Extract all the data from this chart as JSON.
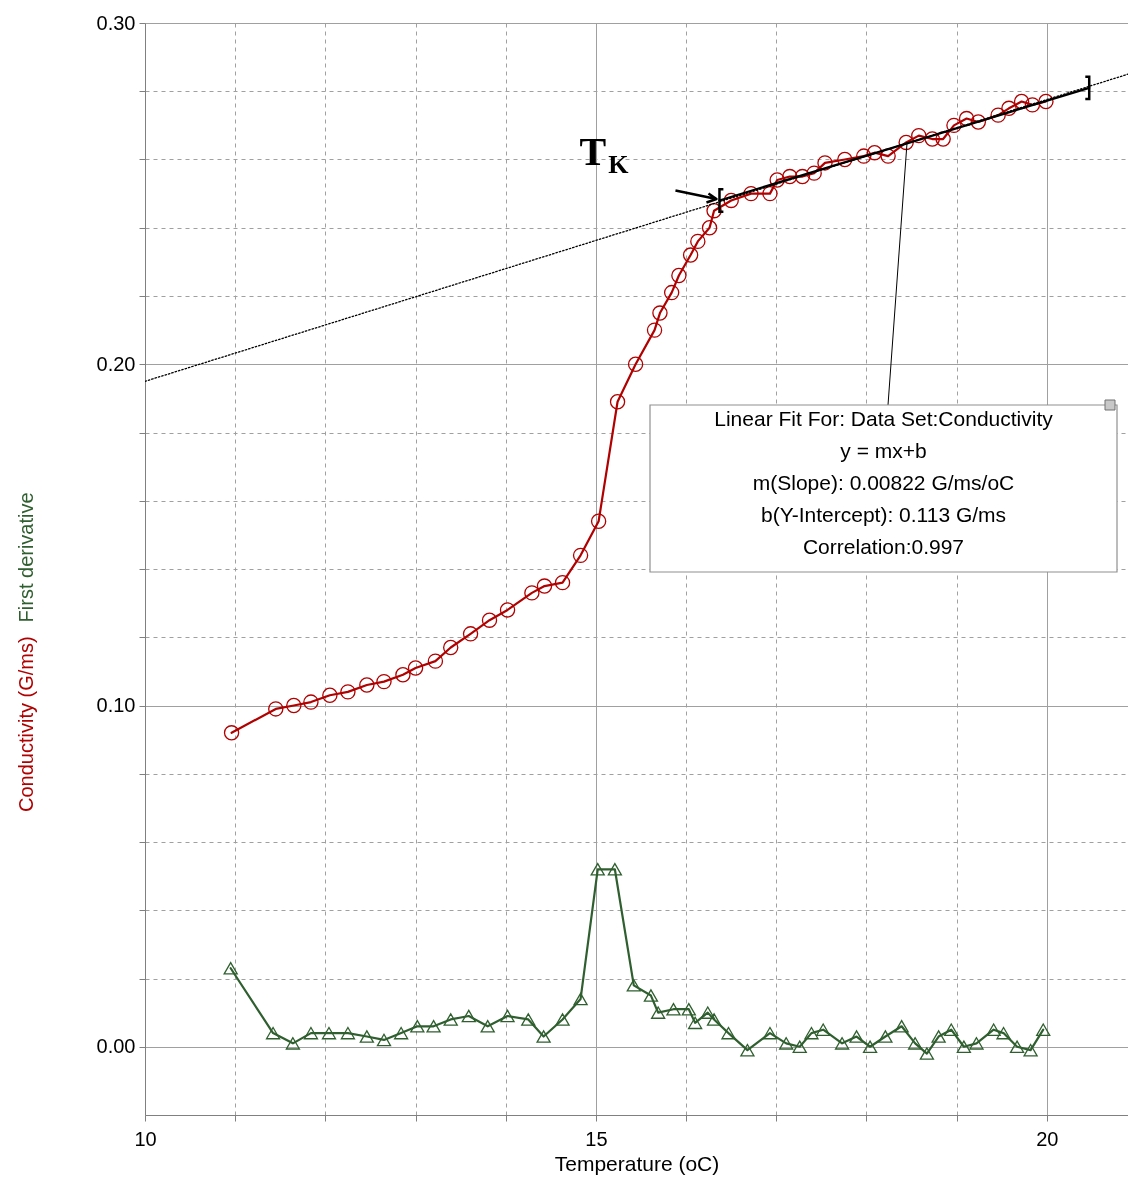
{
  "chart_data": {
    "type": "line",
    "xlabel": "Temperature (oC)",
    "xlim": [
      10,
      20.9
    ],
    "ylim": [
      -0.02,
      0.3
    ],
    "xticks": [
      10,
      {
        "value": 11,
        "label": null
      },
      {
        "value": 12,
        "label": null
      },
      {
        "value": 13,
        "label": null
      },
      {
        "value": 14,
        "label": null
      },
      15,
      {
        "value": 16,
        "label": null
      },
      {
        "value": 17,
        "label": null
      },
      {
        "value": 18,
        "label": null
      },
      {
        "value": 19,
        "label": null
      },
      20
    ],
    "yticks": [
      {
        "value": 0,
        "label": "0.00"
      },
      {
        "value": 0.02,
        "label": null
      },
      {
        "value": 0.04,
        "label": null
      },
      {
        "value": 0.06,
        "label": null
      },
      {
        "value": 0.08,
        "label": null
      },
      {
        "value": 0.1,
        "label": "0.10"
      },
      {
        "value": 0.12,
        "label": null
      },
      {
        "value": 0.14,
        "label": null
      },
      {
        "value": 0.16,
        "label": null
      },
      {
        "value": 0.18,
        "label": null
      },
      {
        "value": 0.2,
        "label": "0.20"
      },
      {
        "value": 0.22,
        "label": null
      },
      {
        "value": 0.24,
        "label": null
      },
      {
        "value": 0.26,
        "label": null
      },
      {
        "value": 0.28,
        "label": null
      },
      {
        "value": 0.3,
        "label": "0.30"
      }
    ],
    "grid": true,
    "series": [
      {
        "name": "Conductivity (G/ms)",
        "color": "#b00000",
        "marker": "circle",
        "x": [
          10.96,
          11.45,
          11.65,
          11.84,
          12.05,
          12.25,
          12.46,
          12.65,
          12.86,
          13.0,
          13.22,
          13.39,
          13.61,
          13.82,
          14.02,
          14.29,
          14.43,
          14.63,
          14.83,
          15.03,
          15.24,
          15.44,
          15.65,
          15.71,
          15.84,
          15.92,
          16.05,
          16.13,
          16.26,
          16.31,
          16.5,
          16.72,
          16.93,
          17.01,
          17.15,
          17.29,
          17.42,
          17.54,
          17.76,
          17.97,
          18.09,
          18.24,
          18.44,
          18.58,
          18.73,
          18.85,
          18.97,
          19.11,
          19.24,
          19.46,
          19.58,
          19.72,
          19.84,
          19.99
        ],
        "values": [
          0.092,
          0.099,
          0.1,
          0.101,
          0.103,
          0.104,
          0.106,
          0.107,
          0.109,
          0.111,
          0.113,
          0.117,
          0.121,
          0.125,
          0.128,
          0.133,
          0.135,
          0.136,
          0.144,
          0.154,
          0.189,
          0.2,
          0.21,
          0.215,
          0.221,
          0.226,
          0.232,
          0.236,
          0.24,
          0.245,
          0.248,
          0.25,
          0.25,
          0.254,
          0.255,
          0.255,
          0.256,
          0.259,
          0.26,
          0.261,
          0.262,
          0.261,
          0.265,
          0.267,
          0.266,
          0.266,
          0.27,
          0.272,
          0.271,
          0.273,
          0.275,
          0.277,
          0.276,
          0.277
        ]
      },
      {
        "name": "First derivative",
        "color": "#2f5f2f",
        "marker": "triangle",
        "x": [
          10.95,
          11.42,
          11.64,
          11.84,
          12.04,
          12.25,
          12.46,
          12.65,
          12.84,
          13.02,
          13.2,
          13.39,
          13.59,
          13.8,
          14.02,
          14.25,
          14.42,
          14.63,
          14.83,
          15.02,
          15.21,
          15.42,
          15.61,
          15.69,
          15.86,
          16.03,
          16.1,
          16.24,
          16.31,
          16.47,
          16.68,
          16.93,
          17.11,
          17.26,
          17.39,
          17.52,
          17.73,
          17.89,
          18.04,
          18.21,
          18.39,
          18.54,
          18.67,
          18.8,
          18.94,
          19.08,
          19.22,
          19.41,
          19.52,
          19.67,
          19.82,
          19.96
        ],
        "values": [
          0.023,
          0.004,
          0.001,
          0.004,
          0.004,
          0.004,
          0.003,
          0.002,
          0.004,
          0.006,
          0.006,
          0.008,
          0.009,
          0.006,
          0.009,
          0.008,
          0.003,
          0.008,
          0.014,
          0.052,
          0.052,
          0.018,
          0.015,
          0.01,
          0.011,
          0.011,
          0.007,
          0.01,
          0.008,
          0.004,
          -0.001,
          0.004,
          0.001,
          0.0,
          0.004,
          0.005,
          0.001,
          0.003,
          0.0,
          0.003,
          0.006,
          0.001,
          -0.002,
          0.003,
          0.005,
          0.0,
          0.001,
          0.005,
          0.004,
          0.0,
          -0.001,
          0.005
        ]
      },
      {
        "color": "#000000",
        "marker": "none",
        "line_style": "solid",
        "x": [
          16.37,
          20.47
        ],
        "values": [
          0.248,
          0.281
        ]
      },
      {
        "color": "#000000",
        "marker": "none",
        "line_style": "dotted",
        "x": [
          10,
          20.9
        ],
        "values": [
          0.195,
          0.285
        ]
      }
    ],
    "annotations": [
      {
        "text": "T$_{K}$",
        "x": 16.37,
        "y": 0.248
      },
      {
        "text": "Linear Fit For:  Data Set:Conductivity\ny = mx+b\nm(Slope): 0.00822 G/ms/oC\nb(Y-Intercept): 0.113 G/ms\nCorrelation:0.997",
        "x": 18.45,
        "y": 0.265
      }
    ]
  }
}
